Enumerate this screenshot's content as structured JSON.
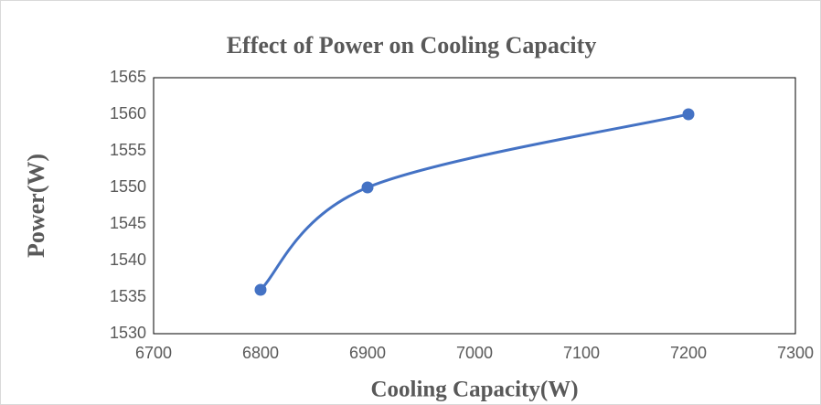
{
  "chart_data": {
    "type": "scatter",
    "title": "Effect of Power on Cooling Capacity",
    "xlabel": "Cooling Capacity(W)",
    "ylabel": "Power(W)",
    "x": [
      6800,
      6900,
      7200
    ],
    "values": [
      1536,
      1550,
      1560
    ],
    "color": "#4472c4",
    "smooth": true,
    "xlim": [
      6700,
      7300
    ],
    "xticks": [
      6700,
      6800,
      6900,
      7000,
      7100,
      7200,
      7300
    ],
    "ylim": [
      1530,
      1565
    ],
    "yticks": [
      1530,
      1535,
      1540,
      1545,
      1550,
      1555,
      1560,
      1565
    ],
    "grid": false
  }
}
